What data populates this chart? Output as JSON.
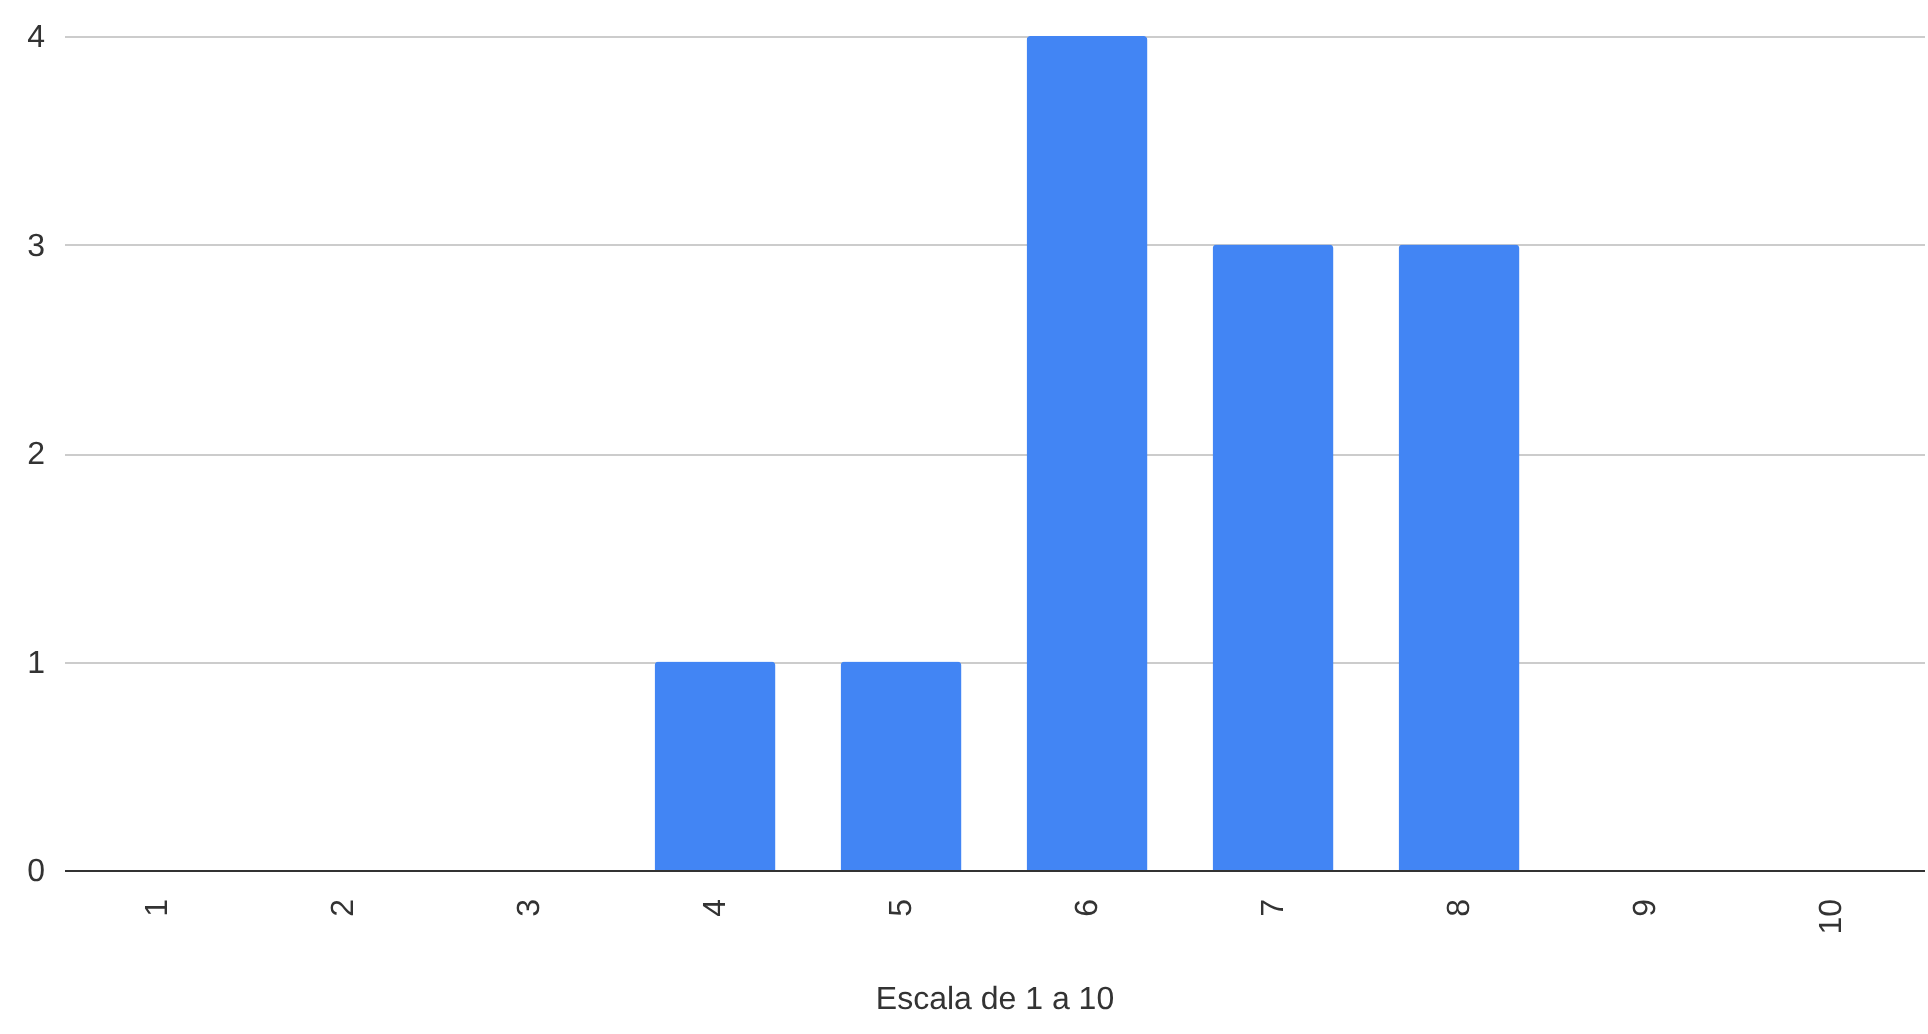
{
  "chart_data": {
    "type": "bar",
    "xlabel": "Escala de 1 a 10",
    "categories": [
      "1",
      "2",
      "3",
      "4",
      "5",
      "6",
      "7",
      "8",
      "9",
      "10"
    ],
    "values": [
      0,
      0,
      0,
      1,
      1,
      4,
      3,
      3,
      0,
      0
    ],
    "color": "#4285f4",
    "ylim": [
      0,
      4
    ],
    "yticks": [
      0,
      1,
      2,
      3,
      4
    ],
    "grid": "y"
  }
}
